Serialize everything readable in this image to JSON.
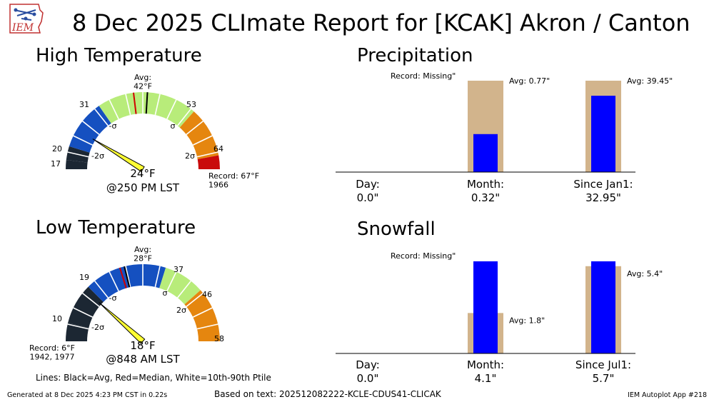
{
  "header": {
    "title": "8 Dec 2025 CLImate Report for [KCAK] Akron / Canton",
    "logo_text": "IEM"
  },
  "footer": {
    "generated": "Generated at 8 Dec 2025 4:23 PM CST in 0.22s",
    "based_on": "Based on text: 202512082222-KCLE-CDUS41-CLICAK",
    "app": "IEM Autoplot App #218",
    "legend_note": "Lines: Black=Avg, Red=Median, White=10th-90th Ptile"
  },
  "chart_data": [
    {
      "type": "gauge",
      "title": "High Temperature",
      "value": 24,
      "value_label": "24°F",
      "time_label": "@250 PM LST",
      "avg": 42,
      "avg_label": "Avg:\n42°F",
      "median": 39,
      "ticks": [
        17,
        20,
        31,
        53,
        64
      ],
      "sigma_labels": [
        "-2σ",
        "-σ",
        "σ",
        "2σ"
      ],
      "record_label": "Record: 67°F\n1966",
      "colors": {
        "below_2sigma": "#1c2733",
        "below_sigma": "#1550c0",
        "normal": "#b8ec7a",
        "above_sigma": "#e5860f",
        "above_2sigma": "#c90b0b",
        "avg_line": "#000000",
        "median_line": "#d00000",
        "pointer": "#ffff33"
      }
    },
    {
      "type": "gauge",
      "title": "Low Temperature",
      "value": 18,
      "value_label": "18°F",
      "time_label": "@848 AM LST",
      "avg": 28,
      "avg_label": "Avg:\n28°F",
      "median": 27,
      "ticks": [
        10,
        19,
        37,
        46,
        58
      ],
      "sigma_labels": [
        "-2σ",
        "-σ",
        "σ",
        "2σ"
      ],
      "record_label": "Record: 6°F\n1942, 1977",
      "colors": {
        "below_2sigma": "#1c2733",
        "below_sigma": "#1550c0",
        "normal": "#b8ec7a",
        "above_sigma": "#e5860f",
        "above_2sigma": "#c90b0b",
        "avg_line": "#000000",
        "median_line": "#d00000",
        "pointer": "#ffff33"
      }
    },
    {
      "type": "bar",
      "title": "Precipitation",
      "categories": [
        "Day:",
        "Month:",
        "Since Jan1:"
      ],
      "observed": [
        0.0,
        0.32,
        32.95
      ],
      "observed_labels": [
        "0.0\"",
        "0.32\"",
        "32.95\""
      ],
      "average": [
        null,
        0.77,
        39.45
      ],
      "average_labels": [
        "Record: Missing\"",
        "Avg: 0.77\"",
        "Avg: 39.45\""
      ],
      "colors": {
        "observed": "#0000ff",
        "average": "#d2b48c"
      }
    },
    {
      "type": "bar",
      "title": "Snowfall",
      "categories": [
        "Day:",
        "Month:",
        "Since Jul1:"
      ],
      "observed": [
        0.0,
        4.1,
        5.7
      ],
      "observed_labels": [
        "0.0\"",
        "4.1\"",
        "5.7\""
      ],
      "average": [
        null,
        1.8,
        5.4
      ],
      "average_labels": [
        "Record: Missing\"",
        "Avg: 1.8\"",
        "Avg: 5.4\""
      ],
      "colors": {
        "observed": "#0000ff",
        "average": "#d2b48c"
      }
    }
  ]
}
